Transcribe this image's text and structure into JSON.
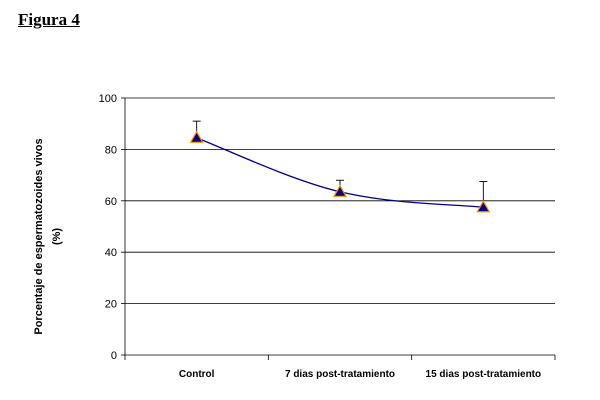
{
  "figure": {
    "label": "Figura 4"
  },
  "chart_data": {
    "type": "line",
    "title": "",
    "xlabel": "",
    "ylabel": "Porcentaje de espermatozoides vivos",
    "ylabel_line2": "(%)",
    "categories": [
      "Control",
      "7 dias post-tratamiento",
      "15 dias post-tratamiento"
    ],
    "series": [
      {
        "name": "Espermatozoides vivos",
        "values": [
          84.5,
          63.5,
          57.5
        ],
        "error_upper": [
          6.5,
          4.5,
          10.0
        ],
        "color": "#00008b",
        "marker": "triangle",
        "marker_fill": "#000080",
        "marker_edge": "#ff8c00"
      }
    ],
    "ylim": [
      0,
      100
    ],
    "yticks": [
      0,
      20,
      40,
      60,
      80,
      100
    ],
    "grid": true,
    "legend": "none"
  },
  "colors": {
    "line": "#00008b",
    "grid": "#000000",
    "marker_fill": "#000080",
    "marker_edge": "#ff8c00"
  }
}
